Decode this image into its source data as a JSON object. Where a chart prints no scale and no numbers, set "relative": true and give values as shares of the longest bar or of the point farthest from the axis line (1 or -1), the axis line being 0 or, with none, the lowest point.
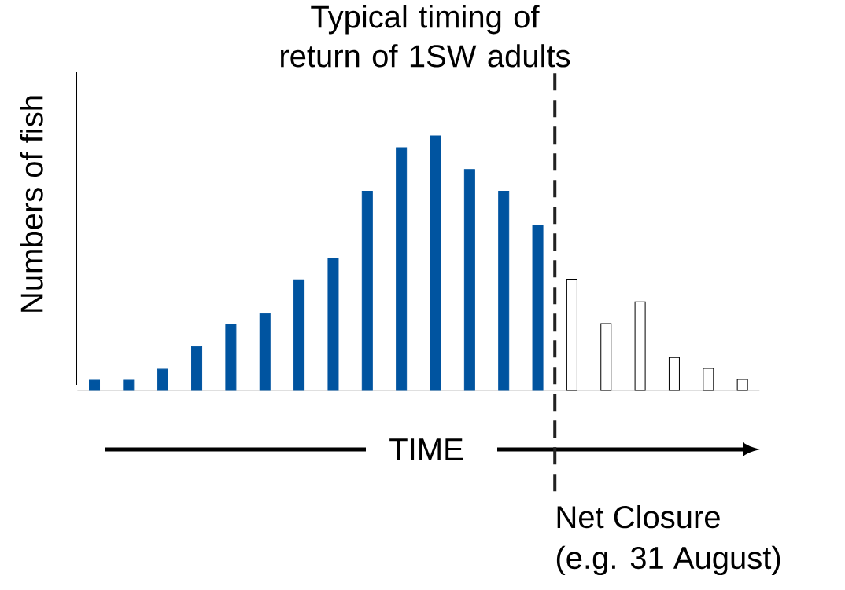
{
  "chart_data": {
    "type": "bar",
    "title": "Typical timing of return of 1SW adults",
    "xlabel": "TIME",
    "ylabel": "Numbers of fish",
    "relative": true,
    "categories": [
      null,
      null,
      null,
      null,
      null,
      null,
      null,
      null,
      null,
      null,
      null,
      null,
      null,
      null,
      null,
      null,
      null,
      null,
      null,
      null
    ],
    "values": [
      0.04,
      0.04,
      0.083,
      0.172,
      0.258,
      0.302,
      0.434,
      0.52,
      0.782,
      0.954,
      1,
      0.868,
      0.782,
      0.649,
      0.437,
      0.262,
      0.348,
      0.129,
      0.086,
      0.043
    ],
    "colors": [
      "#0054a0",
      "#0054a0",
      "#0054a0",
      "#0054a0",
      "#0054a0",
      "#0054a0",
      "#0054a0",
      "#0054a0",
      "#0054a0",
      "#0054a0",
      "#0054a0",
      "#0054a0",
      "#0054a0",
      "#0054a0",
      "#ffffff",
      "#ffffff",
      "#ffffff",
      "#ffffff",
      "#ffffff",
      "#ffffff"
    ],
    "annotations": [
      "Net Closure",
      "(e.g. 31 August)"
    ]
  }
}
